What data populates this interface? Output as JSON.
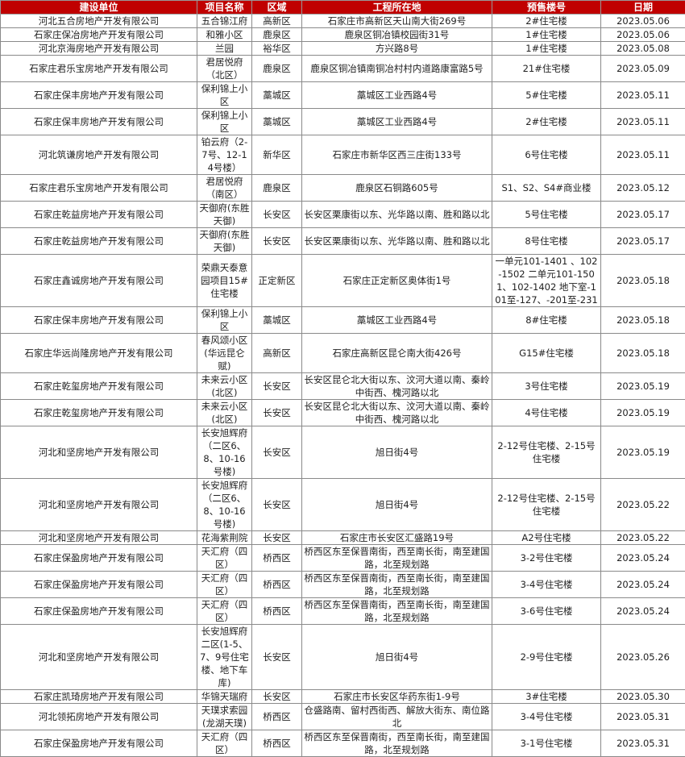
{
  "colors": {
    "header_bg": "#c00000",
    "header_text": "#ffffff"
  },
  "headers": [
    "建设单位",
    "项目名称",
    "区域",
    "工程所在地",
    "预售楼号",
    "日期"
  ],
  "rows": [
    [
      "河北五合房地产开发有限公司",
      "五合锦江府",
      "高新区",
      "石家庄市高新区天山南大街269号",
      "2#住宅楼",
      "2023.05.06"
    ],
    [
      "石家庄保冶房地产开发有限公司",
      "和雅小区",
      "鹿泉区",
      "鹿泉区铜冶镇校园街31号",
      "1#住宅楼",
      "2023.05.06"
    ],
    [
      "河北京海房地产开发有限公司",
      "兰园",
      "裕华区",
      "方兴路8号",
      "1#住宅楼",
      "2023.05.08"
    ],
    [
      "石家庄君乐宝房地产开发有限公司",
      "君居悦府（北区）",
      "鹿泉区",
      "鹿泉区铜冶镇南铜冶村村内道路康富路5号",
      "21#住宅楼",
      "2023.05.09"
    ],
    [
      "石家庄保丰房地产开发有限公司",
      "保利锦上小区",
      "藁城区",
      "藁城区工业西路4号",
      "5#住宅楼",
      "2023.05.11"
    ],
    [
      "石家庄保丰房地产开发有限公司",
      "保利锦上小区",
      "藁城区",
      "藁城区工业西路4号",
      "2#住宅楼",
      "2023.05.11"
    ],
    [
      "河北筑谦房地产开发有限公司",
      "铂云府（2-7号、12-14号楼）",
      "新华区",
      "石家庄市新华区西三庄街133号",
      "6号住宅楼",
      "2023.05.11"
    ],
    [
      "石家庄君乐宝房地产开发有限公司",
      "君居悦府　（南区）",
      "鹿泉区",
      "鹿泉区石铜路605号",
      "S1、S2、S4#商业楼",
      "2023.05.12"
    ],
    [
      "石家庄乾益房地产开发有限公司",
      "天御府(东胜天御)",
      "长安区",
      "长安区栗康街以东、光华路以南、胜和路以北",
      "5号住宅楼",
      "2023.05.17"
    ],
    [
      "石家庄乾益房地产开发有限公司",
      "天御府(东胜天御)",
      "长安区",
      "长安区栗康街以东、光华路以南、胜和路以北",
      "8号住宅楼",
      "2023.05.17"
    ],
    [
      "石家庄鑫诚房地产开发有限公司",
      "荣鼎天泰意园项目15#住宅楼",
      "正定新区",
      "石家庄正定新区奥体街1号",
      "一单元101-1401 、102-1502 二单元101-1501、102-1402 地下室-101至-127、-201至-231",
      "2023.05.18"
    ],
    [
      "石家庄保丰房地产开发有限公司",
      "保利锦上小区",
      "藁城区",
      "藁城区工业西路4号",
      "8#住宅楼",
      "2023.05.18"
    ],
    [
      "石家庄华远尚隆房地产开发有限公司",
      "春风颂小区(华远昆仑赋)",
      "高新区",
      "石家庄高新区昆仑南大街426号",
      "G15#住宅楼",
      "2023.05.18"
    ],
    [
      "石家庄乾玺房地产开发有限公司",
      "未来云小区(北区)",
      "长安区",
      "长安区昆仑北大街以东、汶河大道以南、秦岭中街西、槐河路以北",
      "3号住宅楼",
      "2023.05.19"
    ],
    [
      "石家庄乾玺房地产开发有限公司",
      "未来云小区(北区)",
      "长安区",
      "长安区昆仑北大街以东、汶河大道以南、秦岭中街西、槐河路以北",
      "4号住宅楼",
      "2023.05.19"
    ],
    [
      "河北和坚房地产开发有限公司",
      "长安旭辉府（二区6、8、10-16号楼)",
      "长安区",
      "旭日街4号",
      "2-12号住宅楼、2-15号住宅楼",
      "2023.05.19"
    ],
    [
      "河北和坚房地产开发有限公司",
      "长安旭辉府（二区6、8、10-16号楼)",
      "长安区",
      "旭日街4号",
      "2-12号住宅楼、2-15号住宅楼",
      "2023.05.22"
    ],
    [
      "河北和坚房地产开发有限公司",
      "花海紫荆院",
      "长安区",
      "石家庄市长安区汇盛路19号",
      "A2号住宅楼",
      "2023.05.22"
    ],
    [
      "石家庄保盈房地产开发有限公司",
      "天汇府（四区）",
      "桥西区",
      "桥西区东至保晋南街，西至南长街，南至建国路，北至规划路",
      "3-2号住宅楼",
      "2023.05.24"
    ],
    [
      "石家庄保盈房地产开发有限公司",
      "天汇府（四区）",
      "桥西区",
      "桥西区东至保晋南街，西至南长街，南至建国路，北至规划路",
      "3-4号住宅楼",
      "2023.05.24"
    ],
    [
      "石家庄保盈房地产开发有限公司",
      "天汇府（四区）",
      "桥西区",
      "桥西区东至保晋南街，西至南长街，南至建国路，北至规划路",
      "3-6号住宅楼",
      "2023.05.24"
    ],
    [
      "河北和坚房地产开发有限公司",
      "长安旭辉府二区(1-5、7、9号住宅楼、地下车库)",
      "长安区",
      "旭日街4号",
      "2-9号住宅楼",
      "2023.05.26"
    ],
    [
      "石家庄凯琦房地产开发有限公司",
      "华锦天瑞府",
      "长安区",
      "石家庄市长安区华药东街1-9号",
      "3#住宅楼",
      "2023.05.30"
    ],
    [
      "河北领拓房地产开发有限公司",
      "天璞求索园(龙湖天璞)",
      "桥西区",
      "仓盛路南、留村西街西、解放大街东、南位路北",
      "3-4号住宅楼",
      "2023.05.31"
    ],
    [
      "石家庄保盈房地产开发有限公司",
      "天汇府（四区）",
      "桥西区",
      "桥西区东至保晋南街，西至南长街，南至建国路，北至规划路",
      "3-1号住宅楼",
      "2023.05.31"
    ]
  ]
}
